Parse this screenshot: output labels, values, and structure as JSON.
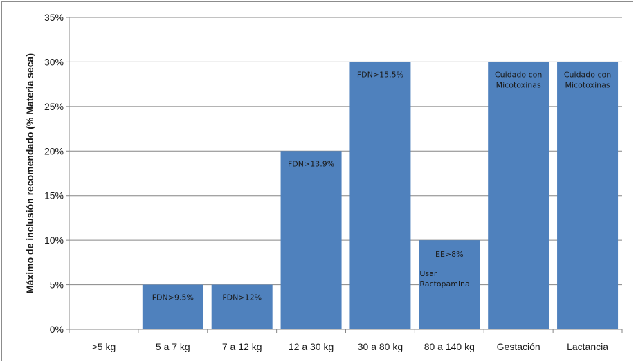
{
  "chart_data": {
    "type": "bar",
    "categories": [
      ">5 kg",
      "5 a 7 kg",
      "7 a 12 kg",
      "12 a 30 kg",
      "30 a 80 kg",
      "80 a 140 kg",
      "Gestación",
      "Lactancia"
    ],
    "values": [
      0,
      5,
      5,
      20,
      30,
      10,
      30,
      30
    ],
    "ylabel": "Máximo de inclusión recomendado (% Materia seca)",
    "xlabel": "",
    "ylim": [
      0,
      35
    ],
    "yticks": [
      "0%",
      "5%",
      "10%",
      "15%",
      "20%",
      "25%",
      "30%",
      "35%"
    ],
    "bar_color": "#4f81bd",
    "grid": true,
    "annotations": [
      {
        "category": "5 a 7 kg",
        "lines": [
          "FDN>9.5%"
        ]
      },
      {
        "category": "7 a 12 kg",
        "lines": [
          "FDN>12%"
        ]
      },
      {
        "category": "12 a 30 kg",
        "lines": [
          "FDN>13.9%"
        ]
      },
      {
        "category": "30 a 80 kg",
        "lines": [
          "FDN>15.5%"
        ]
      },
      {
        "category": "80 a 140 kg",
        "lines": [
          "EE>8%",
          "Usar",
          "Ractopamina"
        ]
      },
      {
        "category": "Gestación",
        "lines": [
          "Cuidado con",
          "Micotoxinas"
        ]
      },
      {
        "category": "Lactancia",
        "lines": [
          "Cuidado con",
          "Micotoxinas"
        ]
      }
    ]
  }
}
